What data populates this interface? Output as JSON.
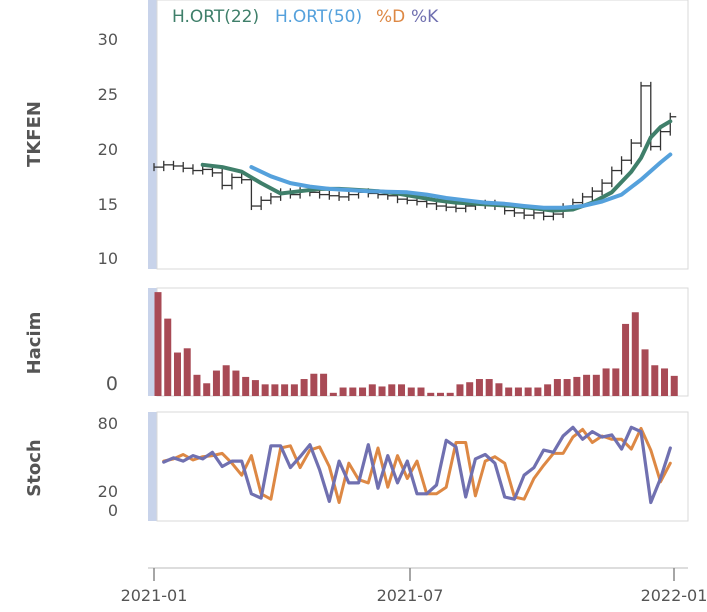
{
  "colors": {
    "hort22": "#3f7f6a",
    "hort50": "#55a1dc",
    "pctD": "#dd8844",
    "pctK": "#7070b0",
    "volume": "#a84a55",
    "candle": "#333333",
    "panel_bar": "#c8d3ea",
    "grid": "#d9d9d9"
  },
  "legend": [
    {
      "label": "H.ORT(22)",
      "color": "#3f7f6a"
    },
    {
      "label": "H.ORT(50)",
      "color": "#55a1dc"
    },
    {
      "label": "%D",
      "color": "#dd8844"
    },
    {
      "label": "%K",
      "color": "#7070b0"
    }
  ],
  "chart_data": [
    {
      "type": "line",
      "panel": "price",
      "ylabel": "TKFEN",
      "yticks": [
        "30",
        "25",
        "20",
        "15",
        "10"
      ],
      "ylim": [
        8.5,
        32
      ],
      "xlim": [
        "2021-01-01",
        "2022-01-14"
      ],
      "xticks": [
        "2021-01",
        "2021-07",
        "2022-01"
      ],
      "series": [
        {
          "name": "TKFEN",
          "style": "ohlc-steps",
          "x": [
            "2021-01-01",
            "2021-01-08",
            "2021-01-15",
            "2021-01-22",
            "2021-01-29",
            "2021-02-05",
            "2021-02-12",
            "2021-02-19",
            "2021-02-26",
            "2021-03-05",
            "2021-03-12",
            "2021-03-19",
            "2021-03-26",
            "2021-04-02",
            "2021-04-09",
            "2021-04-16",
            "2021-04-23",
            "2021-04-30",
            "2021-05-07",
            "2021-05-14",
            "2021-05-21",
            "2021-05-28",
            "2021-06-04",
            "2021-06-11",
            "2021-06-18",
            "2021-06-25",
            "2021-07-02",
            "2021-07-09",
            "2021-07-16",
            "2021-07-23",
            "2021-07-30",
            "2021-08-06",
            "2021-08-13",
            "2021-08-20",
            "2021-08-27",
            "2021-09-03",
            "2021-09-10",
            "2021-09-17",
            "2021-09-24",
            "2021-10-01",
            "2021-10-08",
            "2021-10-15",
            "2021-10-22",
            "2021-10-29",
            "2021-11-05",
            "2021-11-12",
            "2021-11-19",
            "2021-11-26",
            "2021-12-03",
            "2021-12-10",
            "2021-12-17",
            "2021-12-24",
            "2021-12-31",
            "2022-01-07"
          ],
          "values": [
            17.4,
            17.6,
            17.5,
            17.3,
            17.1,
            17.2,
            16.9,
            15.8,
            16.5,
            16.3,
            14.0,
            14.5,
            14.8,
            15.2,
            15.0,
            15.3,
            15.2,
            15.0,
            14.9,
            14.8,
            15.0,
            15.2,
            15.1,
            15.0,
            14.9,
            14.6,
            14.5,
            14.4,
            14.2,
            14.0,
            13.9,
            13.8,
            14.0,
            14.1,
            14.2,
            14.0,
            13.6,
            13.4,
            13.2,
            13.4,
            13.1,
            13.3,
            13.9,
            14.3,
            14.8,
            15.3,
            16.0,
            17.1,
            18.0,
            19.5,
            24.5,
            19.2,
            20.5,
            21.8
          ]
        },
        {
          "name": "H.ORT(22)",
          "x": [
            "2021-02-05",
            "2021-02-19",
            "2021-03-05",
            "2021-03-19",
            "2021-04-02",
            "2021-04-16",
            "2021-04-30",
            "2021-05-14",
            "2021-05-28",
            "2021-06-11",
            "2021-06-25",
            "2021-07-09",
            "2021-07-23",
            "2021-08-06",
            "2021-08-20",
            "2021-09-03",
            "2021-09-17",
            "2021-10-01",
            "2021-10-15",
            "2021-10-29",
            "2021-11-12",
            "2021-11-26",
            "2021-12-10",
            "2021-12-17",
            "2021-12-24",
            "2021-12-31",
            "2022-01-07"
          ],
          "values": [
            17.6,
            17.4,
            17.0,
            16.0,
            15.1,
            15.3,
            15.5,
            15.5,
            15.4,
            15.3,
            15.1,
            14.8,
            14.5,
            14.3,
            14.2,
            14.1,
            14.0,
            13.8,
            13.6,
            13.7,
            14.3,
            15.2,
            17.0,
            18.2,
            20.0,
            20.9,
            21.4
          ]
        },
        {
          "name": "H.ORT(50)",
          "x": [
            "2021-03-12",
            "2021-03-26",
            "2021-04-09",
            "2021-04-23",
            "2021-05-07",
            "2021-05-21",
            "2021-06-04",
            "2021-06-18",
            "2021-07-02",
            "2021-07-16",
            "2021-07-30",
            "2021-08-13",
            "2021-08-27",
            "2021-09-10",
            "2021-09-24",
            "2021-10-08",
            "2021-10-22",
            "2021-11-05",
            "2021-11-19",
            "2021-12-03",
            "2021-12-17",
            "2021-12-31",
            "2022-01-07"
          ],
          "values": [
            17.4,
            16.6,
            16.0,
            15.7,
            15.5,
            15.4,
            15.3,
            15.25,
            15.2,
            15.0,
            14.7,
            14.5,
            14.3,
            14.2,
            14.0,
            13.85,
            13.85,
            14.0,
            14.4,
            15.0,
            16.3,
            17.8,
            18.5
          ]
        }
      ]
    },
    {
      "type": "bar",
      "panel": "volume",
      "ylabel": "Hacim",
      "yticks": [
        "0"
      ],
      "ylim": [
        0,
        100
      ],
      "x": [
        "2021-01-01",
        "2021-01-08",
        "2021-01-15",
        "2021-01-22",
        "2021-01-29",
        "2021-02-05",
        "2021-02-12",
        "2021-02-19",
        "2021-02-26",
        "2021-03-05",
        "2021-03-12",
        "2021-03-19",
        "2021-03-26",
        "2021-04-02",
        "2021-04-09",
        "2021-04-16",
        "2021-04-23",
        "2021-04-30",
        "2021-05-07",
        "2021-05-14",
        "2021-05-21",
        "2021-05-28",
        "2021-06-04",
        "2021-06-11",
        "2021-06-18",
        "2021-06-25",
        "2021-07-02",
        "2021-07-09",
        "2021-07-16",
        "2021-07-23",
        "2021-07-30",
        "2021-08-06",
        "2021-08-13",
        "2021-08-20",
        "2021-08-27",
        "2021-09-03",
        "2021-09-10",
        "2021-09-17",
        "2021-09-24",
        "2021-10-01",
        "2021-10-08",
        "2021-10-15",
        "2021-10-22",
        "2021-10-29",
        "2021-11-05",
        "2021-11-12",
        "2021-11-19",
        "2021-11-26",
        "2021-12-03",
        "2021-12-10",
        "2021-12-17",
        "2021-12-24",
        "2021-12-31",
        "2022-01-07"
      ],
      "values": [
        98,
        73,
        41,
        45,
        20,
        12,
        24,
        29,
        24,
        18,
        15,
        11,
        11,
        11,
        11,
        16,
        21,
        21,
        3,
        8,
        8,
        8,
        11,
        9,
        11,
        11,
        8,
        8,
        3,
        3,
        3,
        11,
        13,
        16,
        16,
        12,
        8,
        8,
        8,
        8,
        11,
        16,
        16,
        18,
        20,
        20,
        26,
        26,
        68,
        79,
        44,
        29,
        26,
        19
      ]
    },
    {
      "type": "line",
      "panel": "stochastic",
      "ylabel": "Stoch",
      "yticks": [
        "80",
        "20",
        "0"
      ],
      "ylim": [
        -5,
        95
      ],
      "x": [
        "2021-01-08",
        "2021-01-15",
        "2021-01-22",
        "2021-01-29",
        "2021-02-05",
        "2021-02-12",
        "2021-02-19",
        "2021-02-26",
        "2021-03-05",
        "2021-03-12",
        "2021-03-19",
        "2021-03-26",
        "2021-04-02",
        "2021-04-09",
        "2021-04-16",
        "2021-04-23",
        "2021-04-30",
        "2021-05-07",
        "2021-05-14",
        "2021-05-21",
        "2021-05-28",
        "2021-06-04",
        "2021-06-11",
        "2021-06-18",
        "2021-06-25",
        "2021-07-02",
        "2021-07-09",
        "2021-07-16",
        "2021-07-23",
        "2021-07-30",
        "2021-08-06",
        "2021-08-13",
        "2021-08-20",
        "2021-08-27",
        "2021-09-03",
        "2021-09-10",
        "2021-09-17",
        "2021-09-24",
        "2021-10-01",
        "2021-10-08",
        "2021-10-15",
        "2021-10-22",
        "2021-10-29",
        "2021-11-05",
        "2021-11-12",
        "2021-11-19",
        "2021-11-26",
        "2021-12-03",
        "2021-12-10",
        "2021-12-17",
        "2021-12-24",
        "2021-12-31",
        "2022-01-07"
      ],
      "series": [
        {
          "name": "%D",
          "values": [
            50,
            52,
            56,
            51,
            54,
            55,
            57,
            48,
            37,
            55,
            20,
            15,
            62,
            64,
            44,
            60,
            63,
            45,
            12,
            48,
            33,
            30,
            62,
            26,
            55,
            34,
            50,
            20,
            20,
            26,
            67,
            67,
            18,
            50,
            54,
            48,
            17,
            15,
            34,
            46,
            57,
            57,
            72,
            79,
            67,
            73,
            70,
            70,
            61,
            80,
            60,
            31,
            48
          ]
        },
        {
          "name": "%K",
          "values": [
            49,
            53,
            50,
            55,
            52,
            58,
            45,
            50,
            50,
            20,
            16,
            64,
            64,
            44,
            54,
            65,
            42,
            13,
            50,
            30,
            30,
            65,
            25,
            55,
            30,
            50,
            20,
            20,
            28,
            69,
            63,
            17,
            52,
            56,
            48,
            17,
            15,
            37,
            44,
            60,
            58,
            73,
            81,
            70,
            77,
            72,
            74,
            61,
            81,
            77,
            12,
            34,
            62
          ]
        }
      ]
    }
  ]
}
